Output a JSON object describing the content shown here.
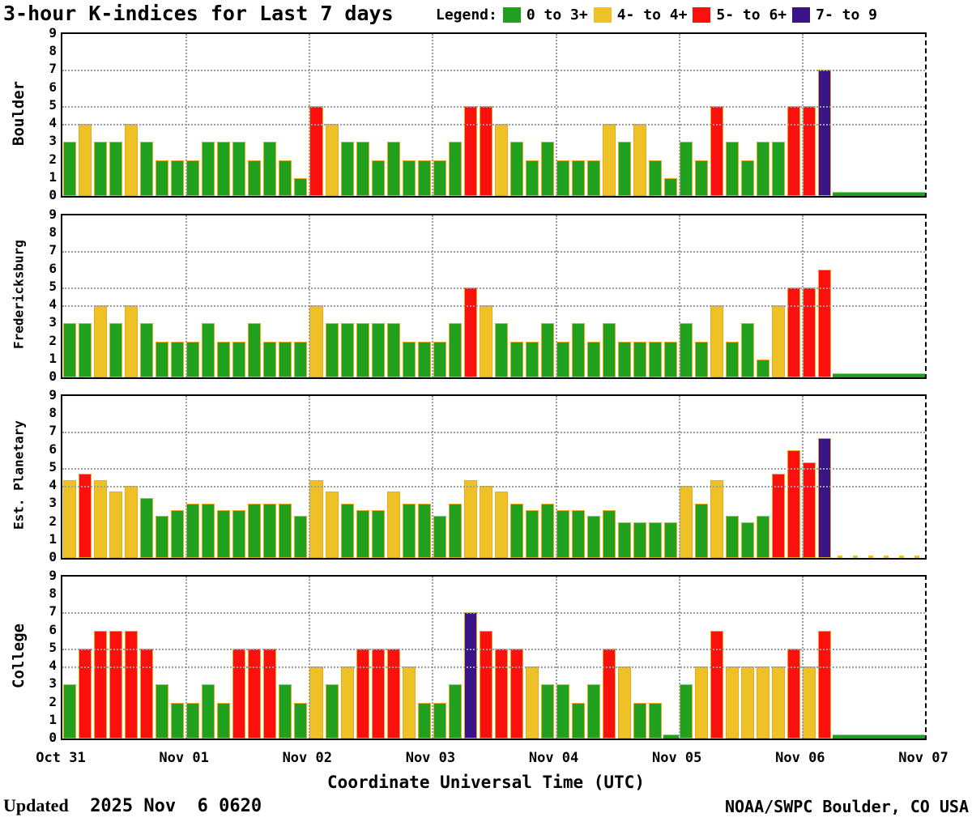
{
  "chart_data": {
    "type": "bar",
    "title": "3-hour K-indices for Last 7 days",
    "xlabel": "Coordinate Universal Time (UTC)",
    "ylim": [
      0,
      9
    ],
    "yticks": [
      9,
      8,
      7,
      6,
      5,
      4,
      3,
      2,
      1,
      0
    ],
    "hgridlines": [
      7,
      5,
      4
    ],
    "x_tick_labels": [
      "Oct 31",
      "Nov 01",
      "Nov 02",
      "Nov 03",
      "Nov 04",
      "Nov 05",
      "Nov 06",
      "Nov 07"
    ],
    "bars_per_day": 8,
    "legend_title": "Legend:",
    "legend": [
      {
        "label": "0 to 3+",
        "color": "#1fa11f"
      },
      {
        "label": "4- to 4+",
        "color": "#eec127"
      },
      {
        "label": "5- to 6+",
        "color": "#fb100d"
      },
      {
        "label": "7- to 9",
        "color": "#3a1487"
      }
    ],
    "colors": {
      "green": "#1fa11f",
      "yellow": "#eec127",
      "red": "#fb100d",
      "purple": "#3a1487",
      "bar_outline": "#e7a91e",
      "gridline": "#9aa0a6"
    },
    "color_thresholds": {
      "green_max": 3.49,
      "yellow_max": 4.49,
      "red_max": 6.49
    },
    "panels": [
      {
        "station": "Boulder",
        "zero_style": "strip",
        "values": [
          3,
          4,
          3,
          3,
          4,
          3,
          2,
          2,
          2,
          3,
          3,
          3,
          2,
          3,
          2,
          1,
          5,
          4,
          3,
          3,
          2,
          3,
          2,
          2,
          2,
          3,
          5,
          5,
          4,
          3,
          2,
          3,
          2,
          2,
          2,
          4,
          3,
          4,
          2,
          1,
          3,
          2,
          5,
          3,
          2,
          3,
          3,
          5,
          5,
          7,
          0,
          0,
          0,
          0,
          0,
          0
        ]
      },
      {
        "station": "Fredericksburg",
        "zero_style": "strip",
        "values": [
          3,
          3,
          4,
          3,
          4,
          3,
          2,
          2,
          2,
          3,
          2,
          2,
          3,
          2,
          2,
          2,
          4,
          3,
          3,
          3,
          3,
          3,
          2,
          2,
          2,
          3,
          5,
          4,
          3,
          2,
          2,
          3,
          2,
          3,
          2,
          3,
          2,
          2,
          2,
          2,
          3,
          2,
          4,
          2,
          3,
          1,
          4,
          5,
          5,
          6,
          0,
          0,
          0,
          0,
          0,
          0
        ]
      },
      {
        "station": "Est. Planetary",
        "zero_style": "nub",
        "values": [
          4.33,
          4.67,
          4.33,
          3.67,
          4,
          3.33,
          2.33,
          2.67,
          3,
          3,
          2.67,
          2.67,
          3,
          3,
          3,
          2.33,
          4.33,
          3.67,
          3,
          2.67,
          2.67,
          3.67,
          3,
          3,
          2.33,
          3,
          4.33,
          4,
          3.67,
          3,
          2.67,
          3,
          2.67,
          2.67,
          2.33,
          2.67,
          2,
          2,
          2,
          2,
          4,
          3,
          4.33,
          2.33,
          2,
          2.33,
          4.67,
          6,
          5.33,
          6.67,
          0,
          0,
          0,
          0,
          0,
          0
        ]
      },
      {
        "station": "College",
        "zero_style": "strip",
        "values": [
          3,
          5,
          6,
          6,
          6,
          5,
          3,
          2,
          2,
          3,
          2,
          5,
          5,
          5,
          3,
          2,
          4,
          3,
          4,
          5,
          5,
          5,
          4,
          2,
          2,
          3,
          7,
          6,
          5,
          5,
          4,
          3,
          3,
          2,
          3,
          5,
          4,
          2,
          2,
          0,
          3,
          4,
          6,
          4,
          4,
          4,
          4,
          5,
          4,
          6,
          0,
          0,
          0,
          0,
          0,
          0
        ]
      }
    ],
    "footer": {
      "updated_label": "Updated",
      "updated_value": "2025 Nov  6 0620",
      "source": "NOAA/SWPC Boulder, CO USA"
    }
  }
}
